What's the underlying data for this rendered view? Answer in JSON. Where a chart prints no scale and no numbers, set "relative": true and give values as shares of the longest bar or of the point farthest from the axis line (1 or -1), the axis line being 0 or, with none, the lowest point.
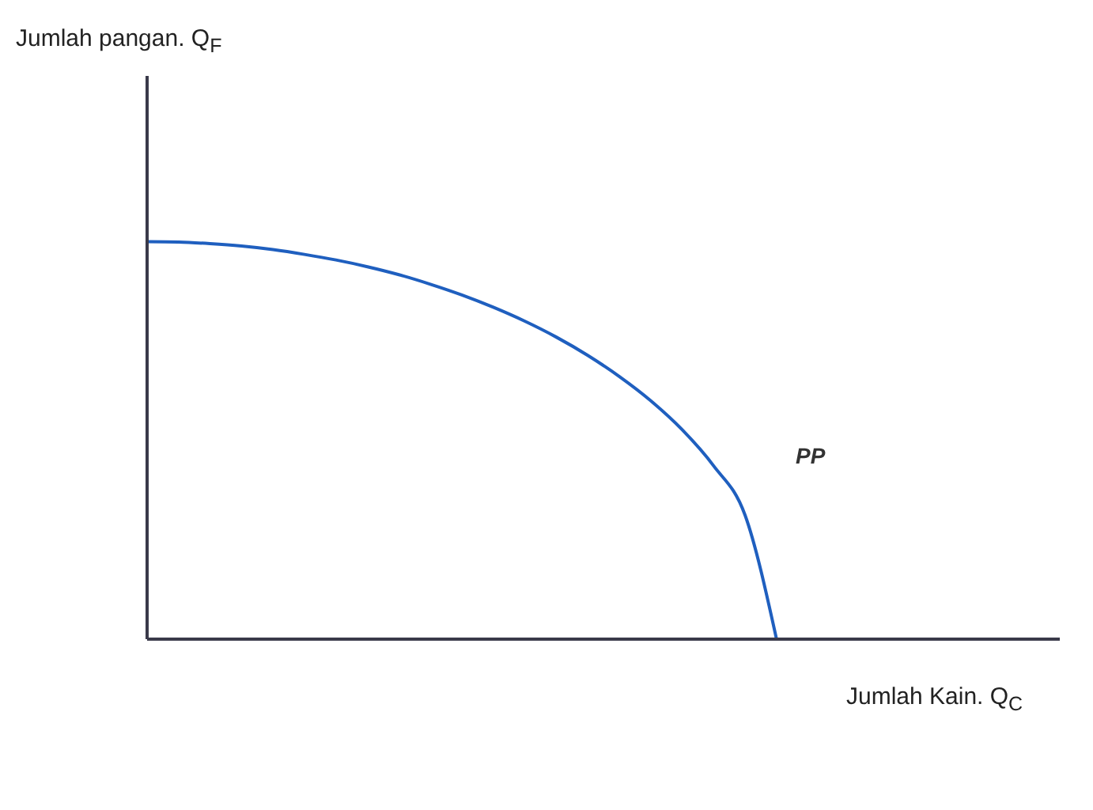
{
  "chart_data": {
    "type": "line",
    "relative": true,
    "xlabel": "Jumlah Kain. Q$_{C}$",
    "categories": [
      null,
      null,
      null,
      null,
      null,
      null,
      null,
      null,
      null,
      null,
      null,
      null,
      null,
      null,
      null,
      null,
      null,
      null,
      null,
      null,
      null,
      null,
      null,
      null,
      null,
      null,
      null,
      null,
      null,
      null
    ],
    "series": [
      {
        "color": "#1f5fbf",
        "values": [
          1,
          0.999,
          0.995,
          0.989,
          0.98,
          0.968,
          0.954,
          0.937,
          0.917,
          0.893,
          0.866,
          0.835,
          0.8,
          0.76,
          0.714,
          0.661,
          0.6,
          0.527,
          0.436,
          0.312,
          0,
          null,
          null,
          null,
          null,
          null,
          null,
          null,
          null,
          null
        ]
      }
    ],
    "annotations": [
      "Jumlah pangan. Q$_{F}$",
      "PP"
    ]
  }
}
